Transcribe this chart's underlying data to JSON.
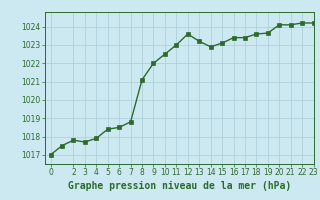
{
  "x": [
    0,
    1,
    2,
    3,
    4,
    5,
    6,
    7,
    8,
    9,
    10,
    11,
    12,
    13,
    14,
    15,
    16,
    17,
    18,
    19,
    20,
    21,
    22,
    23
  ],
  "y": [
    1017.0,
    1017.5,
    1017.8,
    1017.7,
    1017.9,
    1018.4,
    1018.5,
    1018.8,
    1021.1,
    1022.0,
    1022.5,
    1023.0,
    1023.6,
    1023.2,
    1022.9,
    1023.1,
    1023.4,
    1023.4,
    1023.6,
    1023.65,
    1024.1,
    1024.1,
    1024.2,
    1024.2
  ],
  "line_color": "#2d6a2d",
  "marker_color": "#2d6a2d",
  "bg_color": "#cce8f0",
  "grid_color": "#aaccd8",
  "title": "Graphe pression niveau de la mer (hPa)",
  "ylim_min": 1016.5,
  "ylim_max": 1024.8,
  "xlim_min": -0.5,
  "xlim_max": 23,
  "yticks": [
    1017,
    1018,
    1019,
    1020,
    1021,
    1022,
    1023,
    1024
  ],
  "xticks": [
    0,
    2,
    3,
    4,
    5,
    6,
    7,
    8,
    9,
    10,
    11,
    12,
    13,
    14,
    15,
    16,
    17,
    18,
    19,
    20,
    21,
    22,
    23
  ],
  "tick_fontsize": 5.5,
  "title_fontsize": 7,
  "linewidth": 1.0,
  "markersize": 2.5
}
